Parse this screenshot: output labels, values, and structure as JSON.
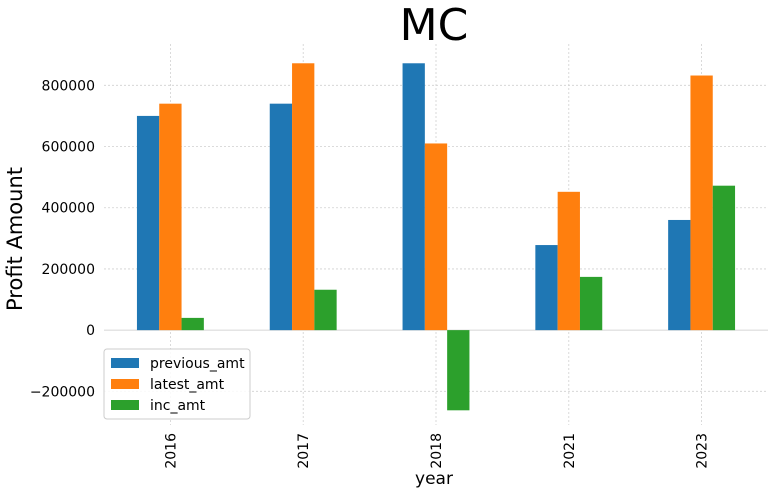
{
  "chart_data": {
    "type": "bar",
    "title": "MC",
    "xlabel": "year",
    "ylabel": "Profit Amount",
    "categories": [
      "2016",
      "2017",
      "2018",
      "2021",
      "2023"
    ],
    "series": [
      {
        "name": "previous_amt",
        "color": "#1f77b4",
        "values": [
          700000,
          740000,
          872000,
          278000,
          360000
        ]
      },
      {
        "name": "latest_amt",
        "color": "#ff7f0e",
        "values": [
          740000,
          872000,
          610000,
          452000,
          832000
        ]
      },
      {
        "name": "inc_amt",
        "color": "#2ca02c",
        "values": [
          40000,
          132000,
          -262000,
          174000,
          472000
        ]
      }
    ],
    "ylim": [
      -310000,
      935000
    ],
    "yticks": [
      -200000,
      0,
      200000,
      400000,
      600000,
      800000
    ],
    "ytick_labels": [
      "−200000",
      "0",
      "200000",
      "400000",
      "600000",
      "800000"
    ],
    "grid": true,
    "legend_position": "lower-left"
  }
}
